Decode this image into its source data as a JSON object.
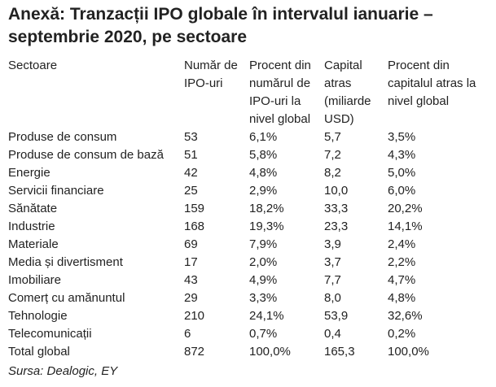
{
  "title": "Anexă: Tranzacții IPO globale în intervalul ianuarie – septembrie 2020, pe sectoare",
  "table": {
    "header": [
      "Sectoare",
      "Număr de IPO-uri",
      "Procent din numărul de IPO-uri la nivel global",
      "Capital atras (miliarde USD)",
      "Procent din capitalul atras la nivel global"
    ],
    "rows": [
      [
        "Produse de consum",
        "53",
        "6,1%",
        "5,7",
        "3,5%"
      ],
      [
        "Produse de consum de bază",
        "51",
        "5,8%",
        "7,2",
        "4,3%"
      ],
      [
        "Energie",
        "42",
        "4,8%",
        "8,2",
        "5,0%"
      ],
      [
        "Servicii financiare",
        "25",
        "2,9%",
        "10,0",
        "6,0%"
      ],
      [
        "Sănătate",
        "159",
        "18,2%",
        "33,3",
        "20,2%"
      ],
      [
        "Industrie",
        "168",
        "19,3%",
        "23,3",
        "14,1%"
      ],
      [
        "Materiale",
        "69",
        "7,9%",
        "3,9",
        "2,4%"
      ],
      [
        "Media și divertisment",
        "17",
        "2,0%",
        "3,7",
        "2,2%"
      ],
      [
        "Imobiliare",
        "43",
        "4,9%",
        "7,7",
        "4,7%"
      ],
      [
        "Comerț cu amănuntul",
        "29",
        "3,3%",
        "8,0",
        "4,8%"
      ],
      [
        "Tehnologie",
        "210",
        "24,1%",
        "53,9",
        "32,6%"
      ],
      [
        "Telecomunicații",
        "6",
        "0,7%",
        "0,4",
        "0,2%"
      ],
      [
        "Total global",
        "872",
        "100,0%",
        "165,3",
        "100,0%"
      ]
    ]
  },
  "source": "Sursa: Dealogic, EY"
}
